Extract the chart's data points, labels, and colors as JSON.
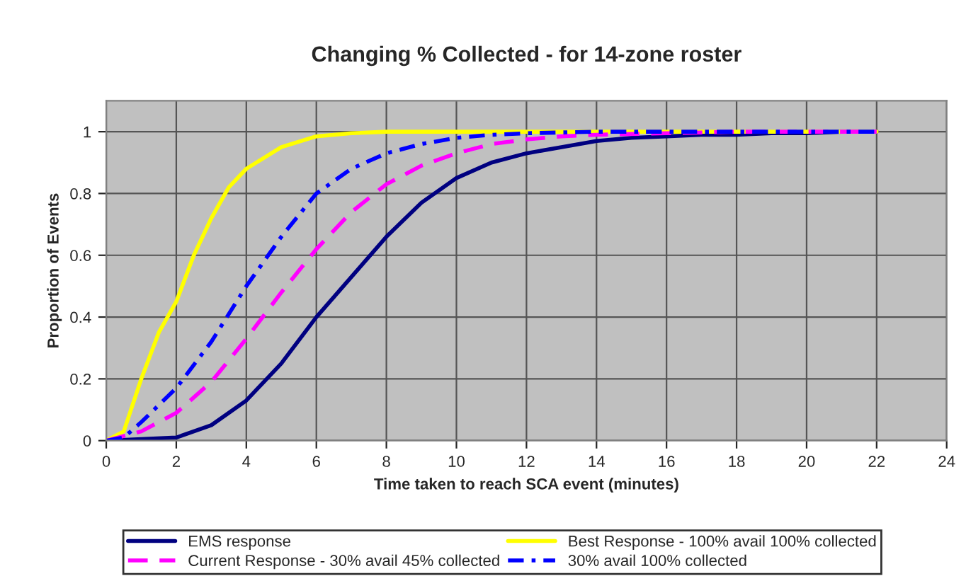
{
  "chart_data": {
    "type": "line",
    "title": "Changing % Collected - for 14-zone roster",
    "xlabel": "Time taken to reach SCA event (minutes)",
    "ylabel": "Proportion of Events",
    "xlim": [
      0,
      24
    ],
    "xticks": [
      0,
      2,
      4,
      6,
      8,
      10,
      12,
      14,
      16,
      18,
      20,
      22,
      24
    ],
    "ylim": [
      0,
      1.1
    ],
    "yticks": [
      0,
      0.2,
      0.4,
      0.6,
      0.8,
      1
    ],
    "grid": true,
    "legend": "bottom",
    "marker": "none",
    "series": [
      {
        "name": "EMS response",
        "color": "#000080",
        "line_style": "solid",
        "x": [
          0,
          1,
          2,
          3,
          4,
          5,
          6,
          7,
          8,
          9,
          10,
          11,
          12,
          13,
          14,
          15,
          16,
          17,
          18,
          19,
          20,
          21,
          22
        ],
        "values": [
          0,
          0.005,
          0.01,
          0.05,
          0.13,
          0.25,
          0.4,
          0.53,
          0.66,
          0.77,
          0.85,
          0.9,
          0.93,
          0.95,
          0.97,
          0.98,
          0.985,
          0.99,
          0.99,
          0.995,
          0.995,
          1,
          1
        ]
      },
      {
        "name": "Best Response - 100% avail 100% collected",
        "color": "#ffff00",
        "line_style": "solid",
        "x": [
          0,
          0.5,
          1,
          1.5,
          2,
          2.5,
          3,
          3.5,
          4,
          5,
          6,
          7,
          8,
          10,
          12,
          14,
          16,
          18,
          20,
          22
        ],
        "values": [
          0,
          0.03,
          0.2,
          0.35,
          0.45,
          0.6,
          0.72,
          0.82,
          0.88,
          0.95,
          0.985,
          0.995,
          1,
          1,
          1,
          1,
          1,
          1,
          1,
          1
        ]
      },
      {
        "name": "Current Response - 30% avail 45% collected",
        "color": "#ff00ff",
        "line_style": "dashed",
        "x": [
          0,
          1,
          2,
          3,
          4,
          5,
          6,
          7,
          8,
          9,
          10,
          11,
          12,
          13,
          14,
          16,
          18,
          20,
          22
        ],
        "values": [
          0,
          0.03,
          0.09,
          0.19,
          0.33,
          0.48,
          0.62,
          0.74,
          0.83,
          0.89,
          0.93,
          0.96,
          0.975,
          0.985,
          0.99,
          0.995,
          1,
          1,
          1
        ]
      },
      {
        "name": "30% avail 100% collected",
        "color": "#0000ff",
        "line_style": "dashdot",
        "x": [
          0,
          0.5,
          1,
          2,
          3,
          4,
          5,
          6,
          7,
          8,
          9,
          10,
          11,
          12,
          14,
          16,
          18,
          20,
          22
        ],
        "values": [
          0,
          0.01,
          0.06,
          0.17,
          0.32,
          0.5,
          0.66,
          0.8,
          0.88,
          0.93,
          0.96,
          0.98,
          0.99,
          0.995,
          1,
          1,
          1,
          1,
          1
        ]
      }
    ]
  }
}
